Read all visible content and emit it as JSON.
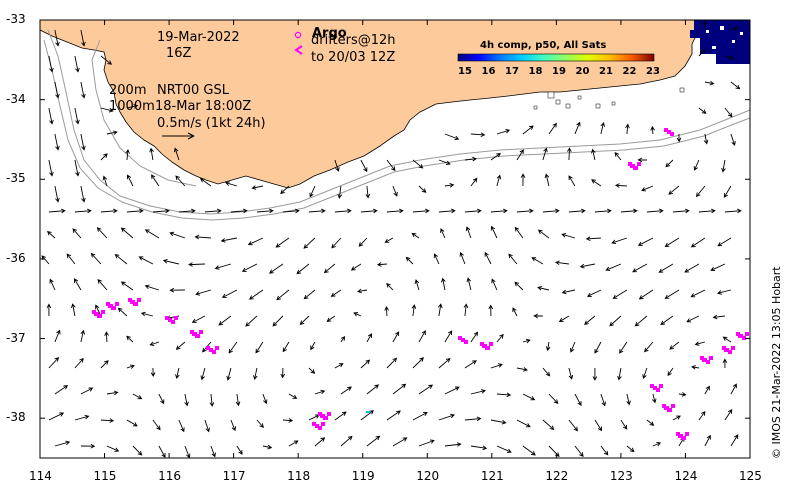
{
  "map": {
    "date": "19-Mar-2022",
    "time": "16Z",
    "legend": {
      "argo_label": "Argo",
      "drifters_label": "drifters@12h",
      "drifters_to": "to 20/03 12Z"
    },
    "depth_info": {
      "line1": "200m",
      "line2": "1000m",
      "product": "NRT00 GSL",
      "product_time": "18-Mar 18:00Z",
      "scale": "0.5m/s (1kt 24h)"
    },
    "colorbar": {
      "title": "4h comp, p50, All Sats",
      "ticks": [
        "15",
        "16",
        "17",
        "18",
        "19",
        "20",
        "21",
        "22",
        "23"
      ],
      "colors": [
        "#00007f",
        "#0000ff",
        "#0080ff",
        "#00d0ff",
        "#40ffc0",
        "#90ff60",
        "#e0ff00",
        "#ffc000",
        "#ff6000",
        "#d00000",
        "#800000"
      ]
    },
    "axes": {
      "x_ticks": [
        "114",
        "115",
        "116",
        "117",
        "118",
        "119",
        "120",
        "121",
        "122",
        "123",
        "124",
        "125"
      ],
      "y_ticks": [
        "-33",
        "-34",
        "-35",
        "-36",
        "-37",
        "-38"
      ],
      "xlim": [
        114,
        125
      ],
      "ylim": [
        -38.5,
        -33
      ]
    },
    "credit": "© IMOS 21-Mar-2022 13:05 Hobart",
    "colors": {
      "land": "#fdcb9b",
      "drifter": "#ff00ff",
      "isobath": "#9a9a9a"
    }
  }
}
